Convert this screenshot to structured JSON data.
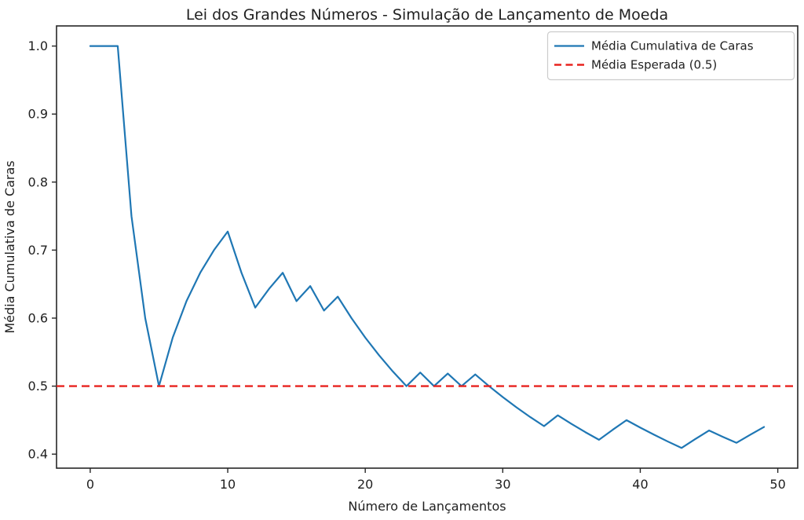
{
  "figure": {
    "background": "#ffffff"
  },
  "chart_data": {
    "type": "line",
    "title": "Lei dos Grandes Números - Simulação de Lançamento de Moeda",
    "xlabel": "Número de Lançamentos",
    "ylabel": "Média Cumulativa de Caras",
    "grid": false,
    "legend_position": "upper right",
    "xlim": [
      -2.45,
      51.45
    ],
    "ylim": [
      0.3794,
      1.0296
    ],
    "xticks": [
      0,
      10,
      20,
      30,
      40,
      50
    ],
    "yticks": [
      0.4,
      0.5,
      0.6,
      0.7,
      0.8,
      0.9,
      1.0
    ],
    "x": [
      0,
      1,
      2,
      3,
      4,
      5,
      6,
      7,
      8,
      9,
      10,
      11,
      12,
      13,
      14,
      15,
      16,
      17,
      18,
      19,
      20,
      21,
      22,
      23,
      24,
      25,
      26,
      27,
      28,
      29,
      30,
      31,
      32,
      33,
      34,
      35,
      36,
      37,
      38,
      39,
      40,
      41,
      42,
      43,
      44,
      45,
      46,
      47,
      48,
      49
    ],
    "series": [
      {
        "name": "Média Cumulativa de Caras",
        "color": "#1f77b4",
        "style": "solid",
        "values": [
          1.0,
          1.0,
          1.0,
          0.75,
          0.6,
          0.5,
          0.5714,
          0.625,
          0.6667,
          0.7,
          0.7273,
          0.6667,
          0.6154,
          0.6429,
          0.6667,
          0.625,
          0.6471,
          0.6111,
          0.6316,
          0.6,
          0.5714,
          0.5455,
          0.5217,
          0.5,
          0.52,
          0.5,
          0.5185,
          0.5,
          0.5172,
          0.5,
          0.4839,
          0.4688,
          0.4545,
          0.4412,
          0.4571,
          0.4444,
          0.4324,
          0.4211,
          0.4359,
          0.45,
          0.439,
          0.4286,
          0.4186,
          0.4091,
          0.4222,
          0.4348,
          0.4255,
          0.4167,
          0.4286,
          0.44
        ]
      },
      {
        "name": "Média Esperada (0.5)",
        "color": "#e8231f",
        "style": "dashed",
        "constant_value": 0.5
      }
    ],
    "colors": {
      "spine": "#262626",
      "tick_text": "#1f1f1f",
      "legend_border": "#cccccc"
    }
  }
}
